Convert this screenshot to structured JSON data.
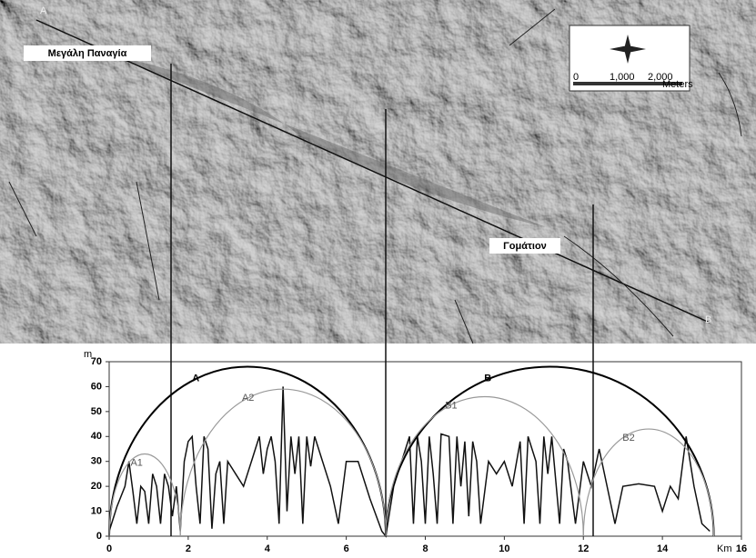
{
  "map": {
    "place_labels": [
      "Μεγάλη Παναγία",
      "Γομάτιον"
    ],
    "point_labels": [
      "A",
      "B"
    ],
    "scale_labels": [
      "0",
      "1,000",
      "2,000",
      "Meters"
    ]
  },
  "chart_data": {
    "type": "line",
    "ylabel": "m",
    "xlabel": "Km",
    "xlim": [
      0,
      16
    ],
    "xticks": [
      0,
      2,
      4,
      6,
      8,
      10,
      12,
      14,
      16
    ],
    "ylim": [
      0,
      70
    ],
    "yticks": [
      0,
      10,
      20,
      30,
      40,
      50,
      60,
      70
    ],
    "series": [
      {
        "color": "#111111",
        "x": [
          0,
          0.2,
          0.4,
          0.5,
          0.6,
          0.7,
          0.8,
          0.9,
          1.0,
          1.1,
          1.2,
          1.3,
          1.4,
          1.5,
          1.6,
          1.7,
          1.8,
          1.9,
          2.0,
          2.1,
          2.2,
          2.3,
          2.4,
          2.5,
          2.6,
          2.7,
          2.8,
          2.9,
          3.0,
          3.2,
          3.4,
          3.6,
          3.8,
          3.9,
          4.0,
          4.1,
          4.2,
          4.3,
          4.4,
          4.5,
          4.6,
          4.7,
          4.8,
          4.9,
          5.0,
          5.1,
          5.2,
          5.4,
          5.6,
          5.8,
          6.0,
          6.3,
          6.6,
          6.9,
          7.0,
          7.2,
          7.4,
          7.6,
          7.7,
          7.8,
          7.9,
          8.0,
          8.1,
          8.2,
          8.3,
          8.4,
          8.6,
          8.7,
          8.8,
          8.9,
          9.0,
          9.1,
          9.2,
          9.3,
          9.4,
          9.6,
          9.8,
          10.0,
          10.2,
          10.4,
          10.5,
          10.6,
          10.8,
          10.9,
          11.0,
          11.1,
          11.2,
          11.4,
          11.5,
          11.6,
          11.8,
          12.0,
          12.2,
          12.4,
          12.6,
          12.8,
          13.0,
          13.4,
          13.8,
          14.0,
          14.2,
          14.4,
          14.6,
          14.8,
          15.0,
          15.2
        ],
        "values": [
          2,
          12,
          20,
          30,
          18,
          5,
          20,
          18,
          5,
          25,
          20,
          5,
          25,
          20,
          8,
          20,
          2,
          30,
          38,
          40,
          20,
          5,
          40,
          35,
          3,
          25,
          30,
          5,
          30,
          25,
          20,
          30,
          40,
          25,
          35,
          40,
          30,
          5,
          60,
          10,
          40,
          25,
          40,
          5,
          40,
          28,
          40,
          30,
          20,
          5,
          30,
          30,
          15,
          2,
          0,
          20,
          30,
          40,
          5,
          40,
          30,
          5,
          40,
          25,
          5,
          41,
          40,
          5,
          40,
          20,
          38,
          8,
          38,
          30,
          5,
          30,
          25,
          30,
          20,
          38,
          5,
          40,
          30,
          5,
          40,
          25,
          40,
          5,
          35,
          30,
          5,
          30,
          20,
          35,
          20,
          5,
          20,
          21,
          20,
          10,
          20,
          15,
          40,
          20,
          5,
          2
        ]
      }
    ],
    "arcs": [
      {
        "label": "A",
        "start": 0,
        "end": 7,
        "peak": 68,
        "color": "#000000"
      },
      {
        "label": "A1",
        "start": 0,
        "end": 1.8,
        "peak": 33,
        "color": "#999999"
      },
      {
        "label": "A2",
        "start": 1.8,
        "end": 7,
        "peak": 59,
        "color": "#999999"
      },
      {
        "label": "B",
        "start": 7,
        "end": 15.3,
        "peak": 68,
        "color": "#000000"
      },
      {
        "label": "B1",
        "start": 7,
        "end": 12,
        "peak": 56,
        "color": "#999999"
      },
      {
        "label": "B2",
        "start": 12,
        "end": 15.3,
        "peak": 43,
        "color": "#999999"
      }
    ]
  }
}
